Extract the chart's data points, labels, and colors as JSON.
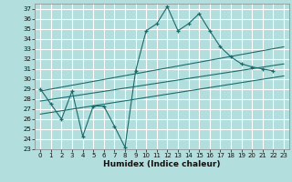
{
  "xlabel": "Humidex (Indice chaleur)",
  "xlim": [
    -0.5,
    23.5
  ],
  "ylim": [
    23,
    37.5
  ],
  "yticks": [
    23,
    24,
    25,
    26,
    27,
    28,
    29,
    30,
    31,
    32,
    33,
    34,
    35,
    36,
    37
  ],
  "xticks": [
    0,
    1,
    2,
    3,
    4,
    5,
    6,
    7,
    8,
    9,
    10,
    11,
    12,
    13,
    14,
    15,
    16,
    17,
    18,
    19,
    20,
    21,
    22,
    23
  ],
  "bg_color": "#b2dede",
  "grid_color": "#ffffff",
  "line_color": "#1a6b6b",
  "x": [
    0,
    1,
    2,
    3,
    4,
    5,
    6,
    7,
    8,
    9,
    10,
    11,
    12,
    13,
    14,
    15,
    16,
    17,
    18,
    19,
    20,
    21,
    22
  ],
  "y": [
    29.0,
    27.5,
    26.0,
    28.8,
    24.3,
    27.3,
    27.3,
    25.3,
    23.2,
    30.8,
    34.8,
    35.5,
    37.2,
    34.8,
    35.5,
    36.5,
    34.8,
    33.2,
    32.2,
    31.5,
    31.2,
    31.0,
    30.8
  ],
  "trend_lines": [
    {
      "x0": 0,
      "y0": 28.8,
      "x1": 23,
      "y1": 33.2
    },
    {
      "x0": 0,
      "y0": 27.8,
      "x1": 23,
      "y1": 31.5
    },
    {
      "x0": 0,
      "y0": 26.5,
      "x1": 23,
      "y1": 30.3
    }
  ]
}
